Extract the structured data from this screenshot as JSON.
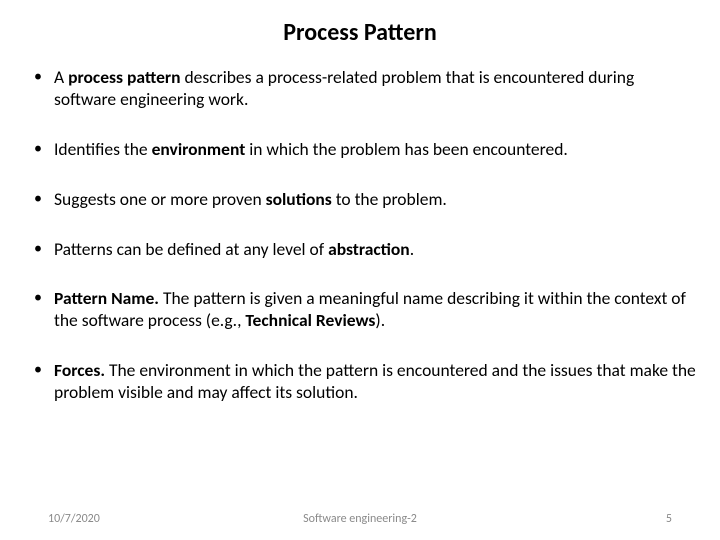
{
  "title": "Process Pattern",
  "title_fontsize": 24,
  "title_weight": 700,
  "body_fontsize": 17.5,
  "background_color": "#ffffff",
  "text_color": "#000000",
  "footer_color": "#8a8a8a",
  "footer_fontsize": 12,
  "bullets": [
    {
      "segments": [
        {
          "t": "A ",
          "b": false
        },
        {
          "t": "process pattern",
          "b": true
        },
        {
          "t": " describes a process-related problem that is encountered during software engineering work.",
          "b": false
        }
      ]
    },
    {
      "segments": [
        {
          "t": "Identifies the ",
          "b": false
        },
        {
          "t": "environment",
          "b": true
        },
        {
          "t": " in which the problem has been encountered.",
          "b": false
        }
      ]
    },
    {
      "segments": [
        {
          "t": "Suggests one or more proven ",
          "b": false
        },
        {
          "t": "solutions",
          "b": true
        },
        {
          "t": " to the problem.",
          "b": false
        }
      ]
    },
    {
      "segments": [
        {
          "t": "Patterns can be defined at any level of ",
          "b": false
        },
        {
          "t": "abstraction",
          "b": true
        },
        {
          "t": ".",
          "b": false
        }
      ]
    },
    {
      "segments": [
        {
          "t": "Pattern Name. ",
          "b": true
        },
        {
          "t": "The pattern is given a meaningful name describing it within the context of the software process (e.g., ",
          "b": false
        },
        {
          "t": "Technical Reviews",
          "b": true
        },
        {
          "t": ").",
          "b": false
        }
      ]
    },
    {
      "segments": [
        {
          "t": "Forces. ",
          "b": true
        },
        {
          "t": "The environment in which the pattern is encountered and the issues that make the problem visible and may affect its solution.",
          "b": false
        }
      ]
    }
  ],
  "footer": {
    "date": "10/7/2020",
    "center": "Software engineering-2",
    "page": "5"
  }
}
